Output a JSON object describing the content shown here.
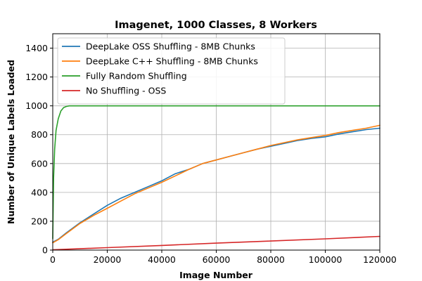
{
  "chart_data": {
    "type": "line",
    "title": "Imagenet, 1000 Classes, 8 Workers",
    "xlabel": "Image Number",
    "ylabel": "Number of Unique Labels Loaded",
    "xlim": [
      0,
      120000
    ],
    "ylim": [
      0,
      1500
    ],
    "xticks": [
      0,
      20000,
      40000,
      60000,
      80000,
      100000,
      120000
    ],
    "yticks": [
      0,
      200,
      400,
      600,
      800,
      1000,
      1200,
      1400
    ],
    "grid": true,
    "legend_position": "upper-left",
    "series": [
      {
        "name": "DeepLake OSS Shuffling - 8MB Chunks",
        "color": "#1f77b4",
        "points": [
          [
            0,
            55
          ],
          [
            2000,
            75
          ],
          [
            5000,
            120
          ],
          [
            10000,
            190
          ],
          [
            15000,
            250
          ],
          [
            20000,
            310
          ],
          [
            25000,
            360
          ],
          [
            30000,
            400
          ],
          [
            35000,
            440
          ],
          [
            40000,
            480
          ],
          [
            45000,
            530
          ],
          [
            50000,
            560
          ],
          [
            55000,
            600
          ],
          [
            60000,
            625
          ],
          [
            65000,
            650
          ],
          [
            70000,
            675
          ],
          [
            75000,
            700
          ],
          [
            80000,
            720
          ],
          [
            85000,
            740
          ],
          [
            90000,
            760
          ],
          [
            95000,
            775
          ],
          [
            100000,
            785
          ],
          [
            105000,
            805
          ],
          [
            110000,
            820
          ],
          [
            115000,
            835
          ],
          [
            120000,
            845
          ]
        ]
      },
      {
        "name": "DeepLake C++ Shuffling - 8MB Chunks",
        "color": "#ff7f0e",
        "points": [
          [
            0,
            50
          ],
          [
            2000,
            72
          ],
          [
            5000,
            115
          ],
          [
            10000,
            185
          ],
          [
            15000,
            240
          ],
          [
            20000,
            290
          ],
          [
            25000,
            340
          ],
          [
            30000,
            390
          ],
          [
            35000,
            430
          ],
          [
            40000,
            470
          ],
          [
            45000,
            515
          ],
          [
            50000,
            560
          ],
          [
            55000,
            600
          ],
          [
            60000,
            625
          ],
          [
            65000,
            650
          ],
          [
            70000,
            675
          ],
          [
            75000,
            700
          ],
          [
            80000,
            725
          ],
          [
            85000,
            745
          ],
          [
            90000,
            765
          ],
          [
            95000,
            780
          ],
          [
            100000,
            795
          ],
          [
            105000,
            815
          ],
          [
            110000,
            830
          ],
          [
            115000,
            845
          ],
          [
            120000,
            865
          ]
        ]
      },
      {
        "name": "Fully Random Shuffling",
        "color": "#2ca02c",
        "points": [
          [
            0,
            80
          ],
          [
            300,
            500
          ],
          [
            700,
            700
          ],
          [
            1200,
            830
          ],
          [
            2000,
            910
          ],
          [
            3000,
            965
          ],
          [
            4000,
            988
          ],
          [
            5000,
            996
          ],
          [
            6000,
            1000
          ],
          [
            120000,
            1000
          ]
        ]
      },
      {
        "name": "No Shuffling - OSS",
        "color": "#d62728",
        "points": [
          [
            0,
            2
          ],
          [
            20000,
            17
          ],
          [
            40000,
            32
          ],
          [
            60000,
            48
          ],
          [
            80000,
            63
          ],
          [
            100000,
            78
          ],
          [
            120000,
            95
          ]
        ]
      }
    ]
  }
}
